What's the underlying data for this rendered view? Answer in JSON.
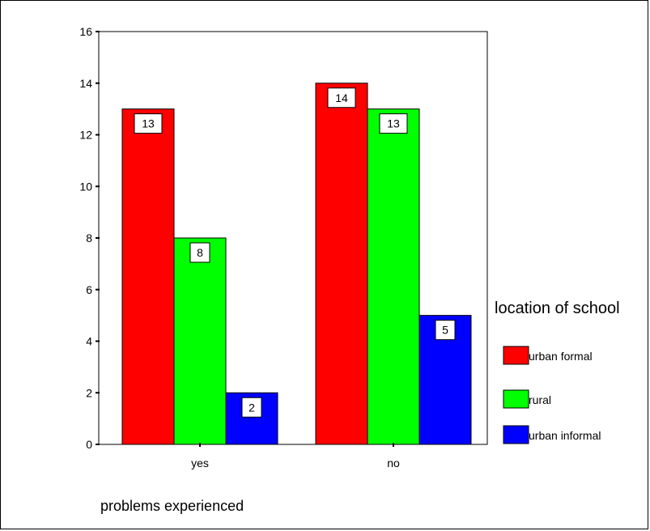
{
  "chart_data": {
    "type": "bar",
    "categories": [
      "yes",
      "no"
    ],
    "series": [
      {
        "name": "urban formal",
        "values": [
          13,
          14
        ],
        "color": "#ff0000"
      },
      {
        "name": "rural",
        "values": [
          8,
          13
        ],
        "color": "#00ff00"
      },
      {
        "name": "urban informal",
        "values": [
          2,
          5
        ],
        "color": "#0000ff"
      }
    ],
    "yticks": [
      "0",
      "2",
      "4",
      "6",
      "8",
      "10",
      "12",
      "14",
      "16"
    ],
    "ylim": [
      0,
      16
    ],
    "xlabel": "problems experienced",
    "ylabel": "",
    "legend_title": "location of school",
    "legend_position": "right",
    "grid": false
  }
}
